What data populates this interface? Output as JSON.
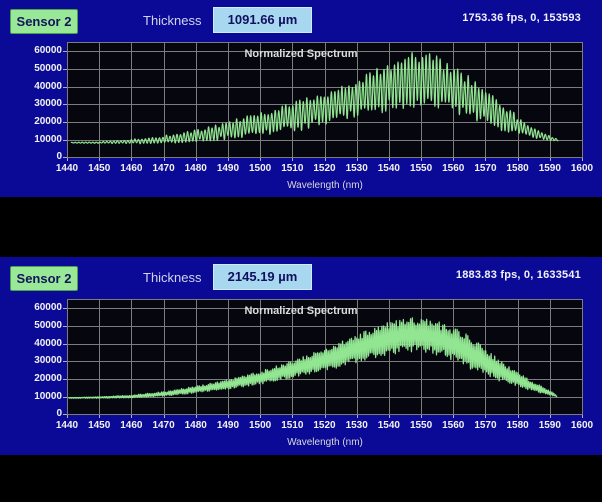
{
  "colors": {
    "panel_bg": "#0a0a96",
    "plot_bg": "#06060f",
    "grid": "#7c7c7c",
    "signal_green": "#92e692",
    "sensor_green": "#98e898",
    "value_bg": "#a8d8f0",
    "tick_text": "#f2f2f2",
    "black_bar": "#000000"
  },
  "panels": [
    {
      "sensor_label": "Sensor 2",
      "thickness_label": "Thickness",
      "thickness_value": "1091.66 µm",
      "status_text": "1753.36 fps, 0, 153593"
    },
    {
      "sensor_label": "Sensor 2",
      "thickness_label": "Thickness",
      "thickness_value": "2145.19 µm",
      "status_text": "1883.83 fps, 0, 1633541"
    }
  ],
  "chart_data": [
    {
      "type": "line",
      "title": "Normalized Spectrum",
      "xlabel": "Wavelength (nm)",
      "ylabel": "",
      "x_range": [
        1440,
        1600
      ],
      "y_max": 65000,
      "x_ticks": [
        1440,
        1450,
        1460,
        1470,
        1480,
        1490,
        1500,
        1510,
        1520,
        1530,
        1540,
        1550,
        1560,
        1570,
        1580,
        1590,
        1600
      ],
      "y_ticks": [
        0,
        10000,
        20000,
        30000,
        40000,
        50000,
        60000
      ],
      "grid": true,
      "legend": "none",
      "series_color": "#92e692",
      "signal": {
        "kind": "interference-fringes",
        "description": "dense spectral fringes; values are [wavelength_nm, lower_envelope, upper_envelope]",
        "fringe_period_nm": 1.09,
        "x_start": 1441.2,
        "x_end": 1592.6,
        "envelope": [
          [
            1440,
            8400,
            8700
          ],
          [
            1450,
            8300,
            9000
          ],
          [
            1460,
            8200,
            10200
          ],
          [
            1468,
            8400,
            11600
          ],
          [
            1475,
            9000,
            13500
          ],
          [
            1482,
            9800,
            15800
          ],
          [
            1490,
            11500,
            19500
          ],
          [
            1497,
            12800,
            23000
          ],
          [
            1505,
            15000,
            27000
          ],
          [
            1512,
            17000,
            31000
          ],
          [
            1520,
            20500,
            36000
          ],
          [
            1527,
            23000,
            40500
          ],
          [
            1534,
            26000,
            46500
          ],
          [
            1540,
            29000,
            52500
          ],
          [
            1546,
            31000,
            56000
          ],
          [
            1551,
            31300,
            56500
          ],
          [
            1556,
            29800,
            53500
          ],
          [
            1562,
            26500,
            47500
          ],
          [
            1568,
            22000,
            40000
          ],
          [
            1574,
            17500,
            31500
          ],
          [
            1580,
            13800,
            22500
          ],
          [
            1585,
            11500,
            16500
          ],
          [
            1589,
            10300,
            12800
          ],
          [
            1592,
            9800,
            10800
          ]
        ]
      }
    },
    {
      "type": "line",
      "title": "Normalized Spectrum",
      "xlabel": "Wavelength (nm)",
      "ylabel": "",
      "x_range": [
        1440,
        1600
      ],
      "y_max": 65000,
      "x_ticks": [
        1440,
        1450,
        1460,
        1470,
        1480,
        1490,
        1500,
        1510,
        1520,
        1530,
        1540,
        1550,
        1560,
        1570,
        1580,
        1590,
        1600
      ],
      "y_ticks": [
        0,
        10000,
        20000,
        30000,
        40000,
        50000,
        60000
      ],
      "grid": true,
      "legend": "none",
      "series_color": "#92e692",
      "signal": {
        "kind": "interference-fringes",
        "description": "dense spectral fringes; values are [wavelength_nm, lower_envelope, upper_envelope]",
        "fringe_period_nm": 0.556,
        "x_start": 1440.4,
        "x_end": 1592.2,
        "envelope": [
          [
            1440,
            9400,
            9700
          ],
          [
            1450,
            9500,
            10200
          ],
          [
            1460,
            9700,
            11000
          ],
          [
            1470,
            10700,
            12800
          ],
          [
            1480,
            12800,
            15800
          ],
          [
            1490,
            15000,
            19200
          ],
          [
            1500,
            18000,
            23800
          ],
          [
            1510,
            21800,
            29500
          ],
          [
            1518,
            25000,
            34500
          ],
          [
            1526,
            28800,
            40500
          ],
          [
            1533,
            32500,
            46000
          ],
          [
            1540,
            35500,
            50500
          ],
          [
            1546,
            37500,
            53000
          ],
          [
            1551,
            37200,
            52500
          ],
          [
            1556,
            35000,
            50000
          ],
          [
            1561,
            31500,
            46500
          ],
          [
            1566,
            27000,
            41500
          ],
          [
            1571,
            22500,
            34500
          ],
          [
            1576,
            19000,
            28000
          ],
          [
            1581,
            16000,
            22000
          ],
          [
            1586,
            13200,
            17000
          ],
          [
            1590,
            11300,
            13500
          ],
          [
            1592,
            10300,
            11200
          ]
        ]
      }
    }
  ]
}
